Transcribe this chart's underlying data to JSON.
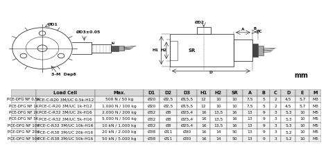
{
  "table_header": [
    "",
    "Load Cell",
    "Max.",
    "D1",
    "D2",
    "D3",
    "H1",
    "H2",
    "SR",
    "A",
    "B",
    "C",
    "D",
    "E",
    "M"
  ],
  "col_widths": [
    0.85,
    2.0,
    1.65,
    0.55,
    0.58,
    0.68,
    0.45,
    0.55,
    0.55,
    0.5,
    0.42,
    0.38,
    0.5,
    0.45,
    0.42
  ],
  "rows": [
    [
      "PCE-DFG NF 0,5K",
      "PCE-C-R20 3M/UC 0,5k-H12",
      "500 N / 50 kg",
      "Ø20",
      "Ø2,5",
      "Ø15,5",
      "12",
      "10",
      "10",
      "7,5",
      "5",
      "2",
      "4,5",
      "5,7",
      "M3"
    ],
    [
      "PCE-DFG NF 1K",
      "PCE-C-R20 3M/UC 1k-H12",
      "1.000 N / 100 kg",
      "Ø20",
      "Ø2,5",
      "Ø15,5",
      "12",
      "10",
      "10",
      "7,5",
      "5",
      "2",
      "4,5",
      "5,7",
      "M3"
    ],
    [
      "PCE-DFG NF 2K",
      "PCE-C-R32 3M/UC 2k-H16",
      "2.000 N / 200 kg",
      "Ø32",
      "Ø8",
      "Ø25,4",
      "16",
      "13,5",
      "16",
      "13",
      "9",
      "3",
      "5,3",
      "10",
      "M5"
    ],
    [
      "PCE-DFG NF 5K",
      "PCE-C-R32 3M/UC 5k-H16",
      "5.000 N / 500 kg",
      "Ø32",
      "Ø8",
      "Ø25,4",
      "16",
      "13,5",
      "16",
      "13",
      "9",
      "3",
      "5,3",
      "10",
      "M5"
    ],
    [
      "PCE-DFG NF 10K",
      "PCE-C-R32 3M/UC 10k-H16",
      "10 kN / 1.000 kg",
      "Ø32",
      "Ø8",
      "Ø25,4",
      "16",
      "13,5",
      "16",
      "13",
      "9",
      "3",
      "5,3",
      "10",
      "M5"
    ],
    [
      "PCE-DFG NF 20K",
      "PCE-C-R38 3M/UC 20k-H16",
      "20 kN / 2.000 kg",
      "Ø38",
      "Ø11",
      "Ø30",
      "16",
      "14",
      "50",
      "13",
      "9",
      "3",
      "5,2",
      "10",
      "M5"
    ],
    [
      "PCE-DFG NF 50K",
      "PCE-C-R38 3M/UC 50k-H16",
      "50 kN / 5.000 kg",
      "Ø38",
      "Ø11",
      "Ø30",
      "16",
      "14",
      "50",
      "13",
      "9",
      "3",
      "5,2",
      "10",
      "M5"
    ]
  ],
  "row_colors_alt": [
    "#f2f2f2",
    "#ffffff"
  ],
  "header_bg": "#d8d8d8",
  "border_color": "#666666",
  "text_color": "#111111",
  "header_fontsize": 4.8,
  "cell_fontsize": 4.3,
  "bg_color": "#ffffff",
  "lc": "#333333"
}
